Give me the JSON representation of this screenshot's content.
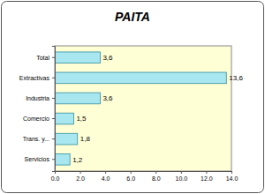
{
  "chart_data": {
    "type": "bar",
    "title": "PAITA",
    "orientation": "horizontal",
    "categories": [
      "Total",
      "Extractivas",
      "Industria",
      "Comercio",
      "Trans. y...",
      "Servicios"
    ],
    "values": [
      3.6,
      13.6,
      3.6,
      1.5,
      1.8,
      1.2
    ],
    "value_labels": [
      "3,6",
      "13,6",
      "3,6",
      "1,5",
      "1,8",
      "1,2"
    ],
    "data_labels": true,
    "color": "#a8e6f0",
    "xlim": [
      0,
      14
    ],
    "xticks": [
      {
        "value": 0,
        "label": "0.0"
      },
      {
        "value": 2,
        "label": "2.0"
      },
      {
        "value": 4,
        "label": "4.0"
      },
      {
        "value": 6,
        "label": "6.0"
      },
      {
        "value": 8,
        "label": "8.0"
      },
      {
        "value": 10,
        "label": "10.0"
      },
      {
        "value": 12,
        "label": "12.0"
      },
      {
        "value": 14,
        "label": "14.0"
      }
    ],
    "grid": false
  }
}
